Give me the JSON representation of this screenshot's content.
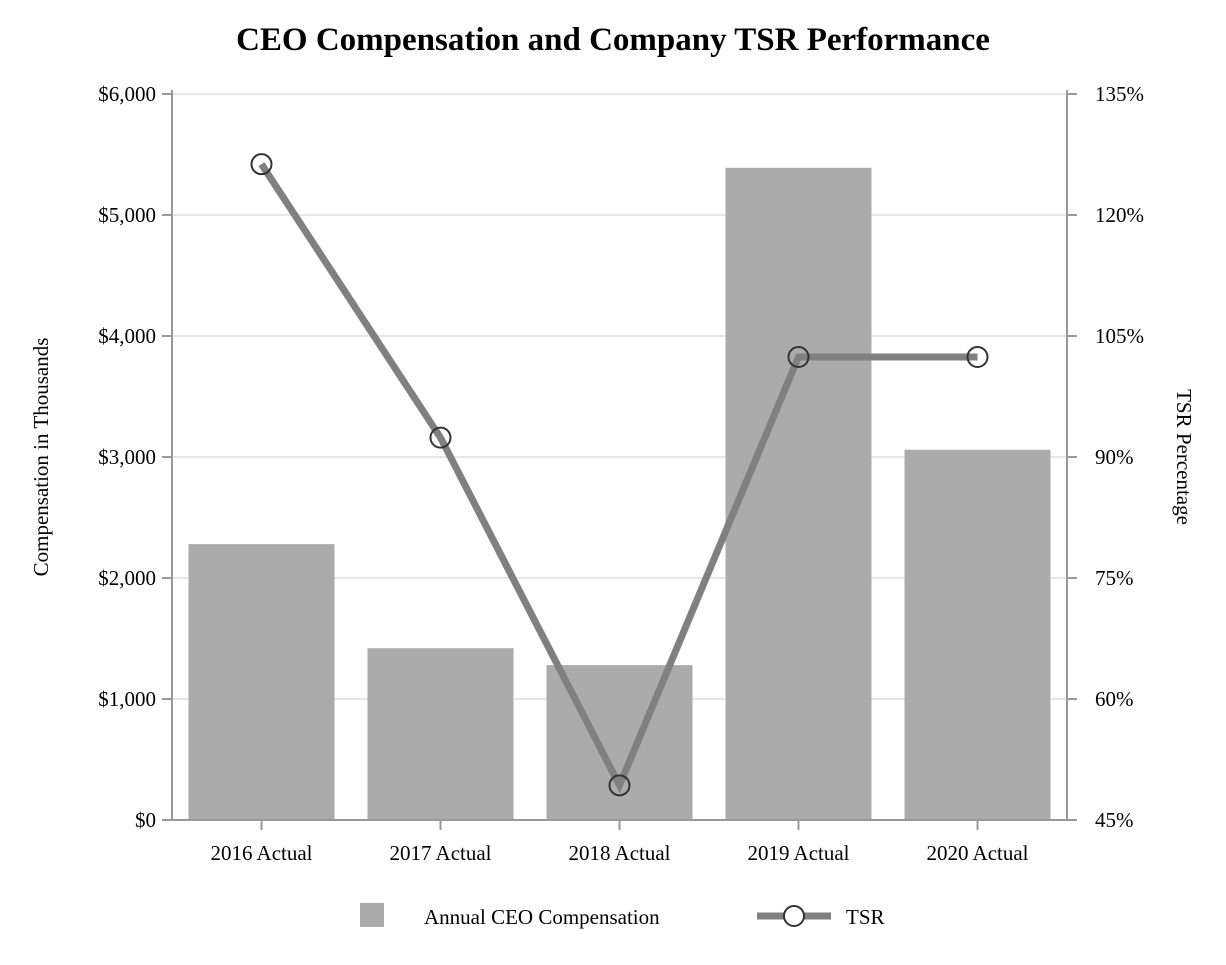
{
  "chart_data": {
    "type": "bar+line",
    "title": "CEO Compensation and Company TSR Performance",
    "categories": [
      "2016 Actual",
      "2017 Actual",
      "2018 Actual",
      "2019 Actual",
      "2020 Actual"
    ],
    "ylabel": "Compensation in Thousands",
    "y2label": "TSR Percentage",
    "ylim": [
      0,
      6000
    ],
    "y2lim": [
      45,
      135
    ],
    "yticks": [
      "$0",
      "$1,000",
      "$2,000",
      "$3,000",
      "$4,000",
      "$5,000",
      "$6,000"
    ],
    "y2ticks": [
      "45%",
      "60%",
      "75%",
      "90%",
      "105%",
      "120%",
      "135%"
    ],
    "grid": true,
    "legend_position": "bottom",
    "series": [
      {
        "name": "Annual CEO Compensation",
        "type": "bar",
        "color": "#ababab",
        "values": [
          2280,
          1420,
          1280,
          5390,
          3060
        ]
      },
      {
        "name": "TSR",
        "type": "line",
        "axis": "right",
        "color": "#808080",
        "marker_color": "#333333",
        "values": [
          126.3,
          92.4,
          49.3,
          102.4,
          102.4
        ]
      }
    ]
  }
}
